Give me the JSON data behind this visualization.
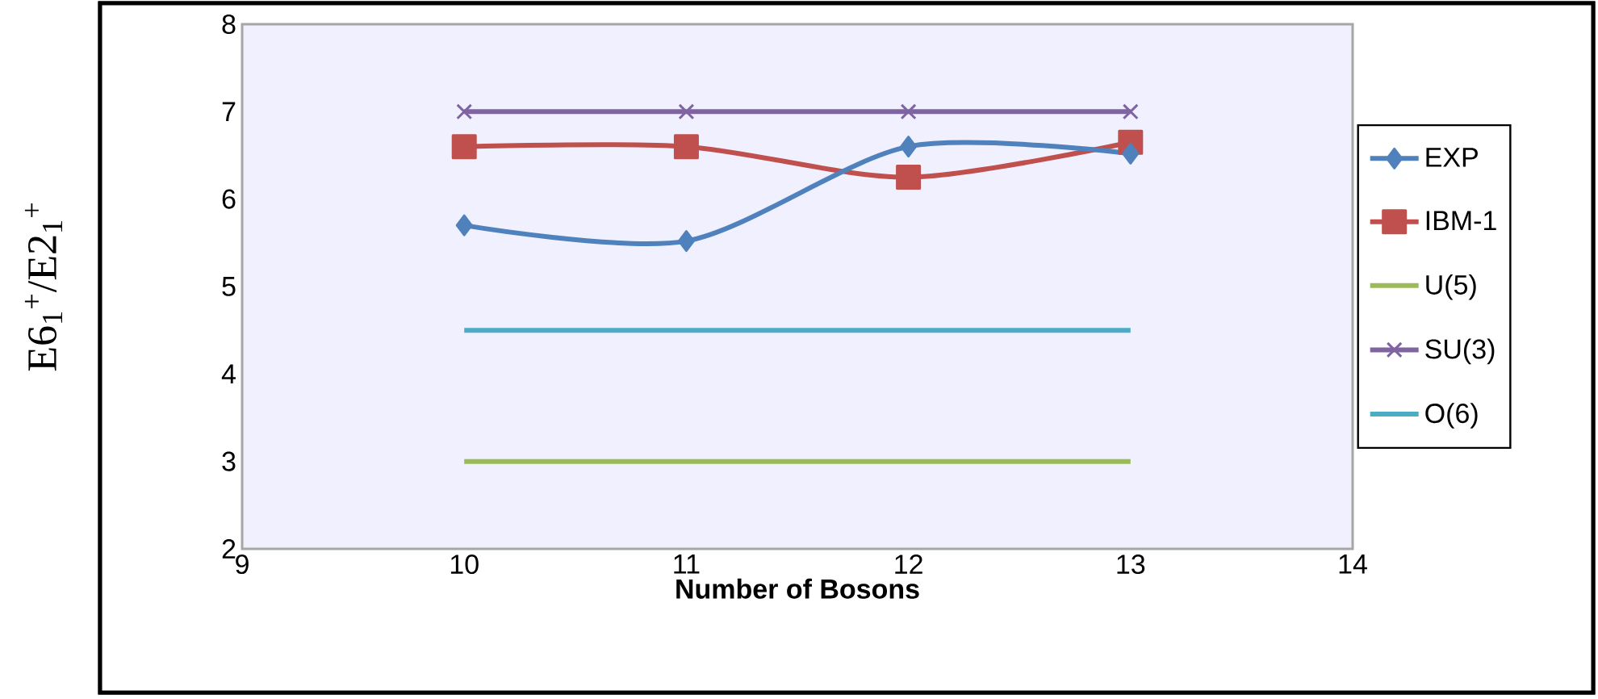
{
  "chart_data": {
    "type": "line",
    "xlabel": "Number of Bosons",
    "ylabel": "E6$_{1}$$^{+}$/E2$_{1}$$^{+}$",
    "x": [
      10,
      11,
      12,
      13
    ],
    "xlim": [
      9,
      14
    ],
    "xticks": [
      9,
      10,
      11,
      12,
      13,
      14
    ],
    "ylim": [
      2,
      8
    ],
    "yticks": [
      2,
      3,
      4,
      5,
      6,
      7,
      8
    ],
    "grid": false,
    "legend": "right",
    "series": [
      {
        "name": "EXP",
        "color": "#4f81bd",
        "marker": "diamond",
        "values": [
          5.7,
          5.52,
          6.6,
          6.52
        ]
      },
      {
        "name": "IBM-1",
        "color": "#c0504d",
        "marker": "square",
        "values": [
          6.6,
          6.6,
          6.25,
          6.65
        ]
      },
      {
        "name": "U(5)",
        "color": "#9bbb59",
        "marker": "none",
        "values": [
          3,
          3,
          3,
          3
        ]
      },
      {
        "name": "SU(3)",
        "color": "#8064a2",
        "marker": "cross",
        "values": [
          7,
          7,
          7,
          7
        ]
      },
      {
        "name": "O(6)",
        "color": "#4bacc6",
        "marker": "none",
        "values": [
          4.5,
          4.5,
          4.5,
          4.5
        ]
      }
    ]
  }
}
